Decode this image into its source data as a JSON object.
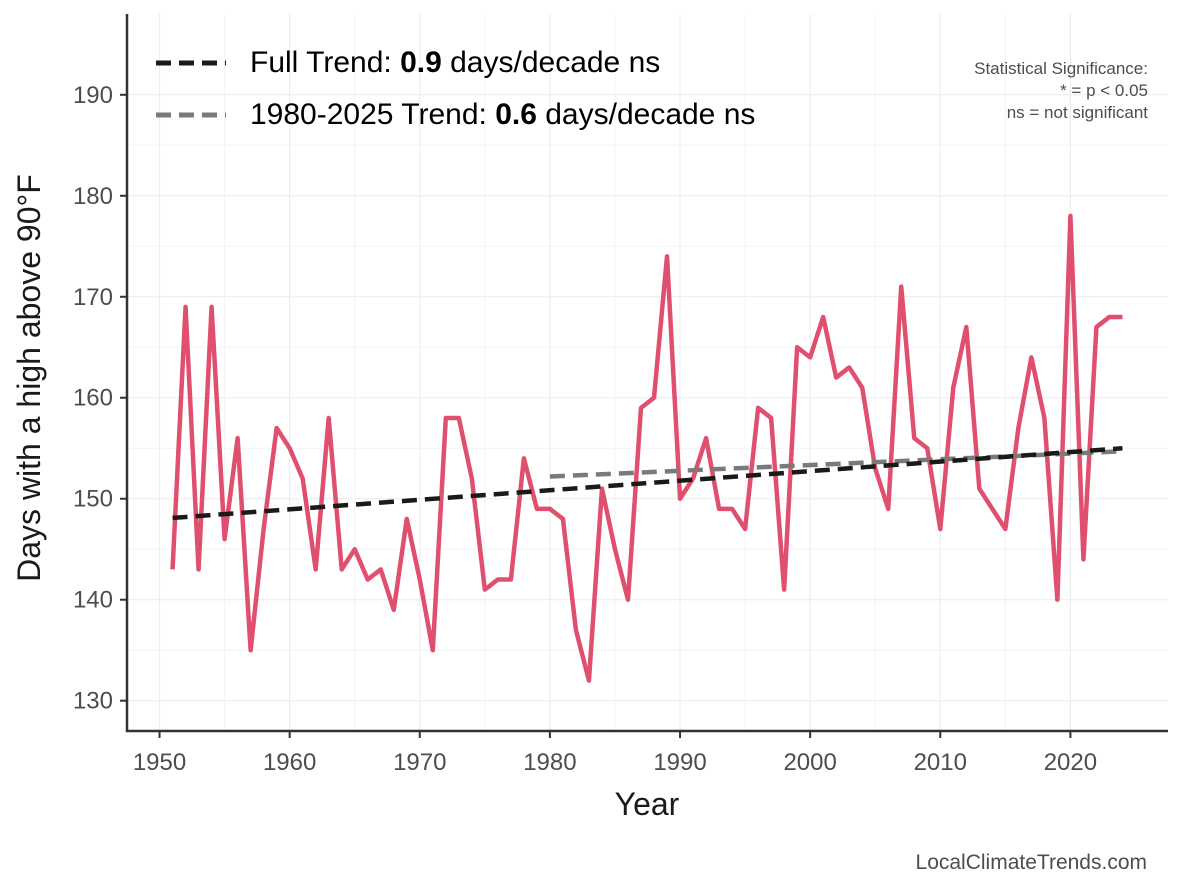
{
  "chart_data": {
    "type": "line",
    "xlabel": "Year",
    "ylabel": "Days with a high above 90°F",
    "xlim": [
      1947.5,
      2027.5
    ],
    "ylim": [
      127,
      198
    ],
    "xticks": [
      1950,
      1960,
      1970,
      1980,
      1990,
      2000,
      2010,
      2020
    ],
    "yticks": [
      130,
      140,
      150,
      160,
      170,
      180,
      190
    ],
    "grid": true,
    "legend_position": "top-left",
    "series": [
      {
        "color": "#e0506e",
        "x": [
          1951,
          1952,
          1953,
          1954,
          1955,
          1956,
          1957,
          1958,
          1959,
          1960,
          1961,
          1962,
          1963,
          1964,
          1965,
          1966,
          1967,
          1968,
          1969,
          1970,
          1971,
          1972,
          1973,
          1974,
          1975,
          1976,
          1977,
          1978,
          1979,
          1980,
          1981,
          1982,
          1983,
          1984,
          1985,
          1986,
          1987,
          1988,
          1989,
          1990,
          1991,
          1992,
          1993,
          1994,
          1995,
          1996,
          1997,
          1998,
          1999,
          2000,
          2001,
          2002,
          2003,
          2004,
          2005,
          2006,
          2007,
          2008,
          2009,
          2010,
          2011,
          2012,
          2013,
          2014,
          2015,
          2016,
          2017,
          2018,
          2019,
          2020,
          2021,
          2022,
          2023,
          2024
        ],
        "values": [
          143,
          169,
          143,
          169,
          146,
          156,
          135,
          147,
          157,
          155,
          152,
          143,
          158,
          143,
          145,
          142,
          143,
          139,
          148,
          142,
          135,
          158,
          158,
          152,
          141,
          142,
          142,
          154,
          149,
          149,
          148,
          137,
          132,
          151,
          145,
          140,
          159,
          160,
          174,
          150,
          152,
          156,
          149,
          149,
          147,
          159,
          158,
          141,
          165,
          164,
          168,
          162,
          163,
          161,
          153,
          149,
          171,
          156,
          155,
          147,
          161,
          167,
          151,
          149,
          147,
          157,
          164,
          158,
          140,
          178,
          144,
          167,
          168,
          168
        ]
      }
    ],
    "trends": [
      {
        "label_prefix": "Full Trend: ",
        "label_value": "0.9",
        "label_suffix": " days/decade ns",
        "color": "#1a1a1a",
        "x": [
          1951,
          2024
        ],
        "values": [
          148.1,
          155.0
        ]
      },
      {
        "label_prefix": "1980-2025 Trend: ",
        "label_value": "0.6",
        "label_suffix": " days/decade ns",
        "color": "#7a7a7a",
        "x": [
          1980,
          2024
        ],
        "values": [
          152.2,
          154.7
        ]
      }
    ],
    "annotations": {
      "significance_lines": [
        "Statistical Significance:",
        "* = p < 0.05",
        "ns = not significant"
      ],
      "source": "LocalClimateTrends.com"
    }
  }
}
